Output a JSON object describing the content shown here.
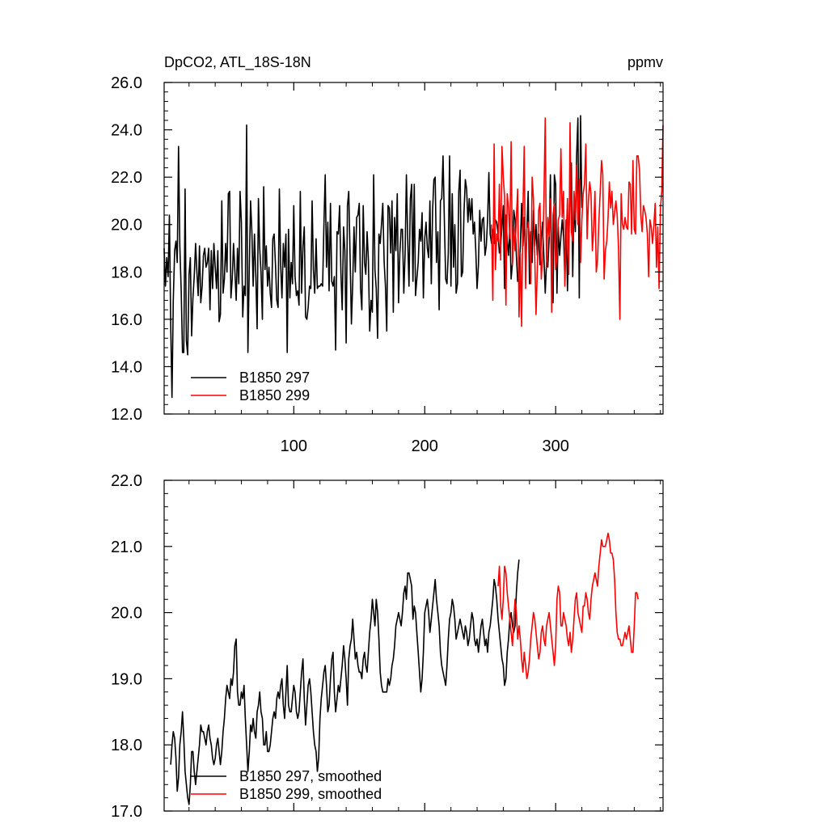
{
  "figure": {
    "title_left": "DpCO2, ATL_18S-18N",
    "title_right": "ppmv"
  },
  "chart_data": [
    {
      "type": "line",
      "panel": "top",
      "xlim": [
        1,
        382
      ],
      "ylim": [
        12,
        26
      ],
      "xticks": [
        100,
        200,
        300
      ],
      "xtick_labels": [
        "100",
        "200",
        "300"
      ],
      "yticks": [
        12,
        14,
        16,
        18,
        20,
        22,
        24,
        26
      ],
      "ytick_labels": [
        "12.0",
        "14.0",
        "16.0",
        "18.0",
        "20.0",
        "22.0",
        "24.0",
        "26.0"
      ],
      "legend_position": "bottom-left",
      "series": [
        {
          "name": "B1850 297",
          "color": "#000000",
          "x_start": 1,
          "values": [
            19.0,
            17.4,
            18.6,
            17.8,
            20.4,
            15.8,
            12.7,
            16.8,
            18.9,
            19.3,
            18.4,
            23.3,
            19.1,
            17.2,
            14.6,
            14.6,
            21.5,
            15.1,
            14.5,
            17.9,
            18.6,
            15.3,
            16.9,
            17.8,
            19.2,
            18.0,
            17.0,
            19.1,
            16.7,
            17.4,
            18.7,
            19.0,
            18.2,
            18.4,
            19.0,
            16.4,
            18.9,
            17.3,
            19.2,
            18.2,
            17.3,
            18.9,
            15.9,
            16.2,
            21.0,
            17.1,
            17.7,
            19.2,
            18.0,
            21.3,
            21.4,
            16.9,
            17.7,
            19.2,
            18.1,
            16.8,
            19.0,
            17.5,
            21.4,
            20.1,
            16.1,
            17.4,
            17.0,
            24.2,
            14.6,
            18.2,
            21.0,
            19.7,
            17.4,
            19.6,
            17.8,
            15.6,
            21.1,
            19.0,
            18.0,
            16.0,
            21.6,
            18.1,
            19.1,
            17.4,
            18.2,
            17.1,
            16.5,
            19.4,
            19.6,
            18.3,
            16.8,
            16.5,
            21.5,
            18.3,
            16.9,
            19.2,
            18.2,
            19.6,
            14.6,
            19.8,
            16.9,
            18.4,
            17.5,
            20.8,
            17.8,
            17.0,
            17.2,
            16.6,
            21.4,
            17.1,
            19.1,
            19.9,
            16.1,
            16.0,
            16.5,
            17.4,
            17.3,
            21.0,
            18.1,
            17.1,
            19.4,
            17.3,
            17.4,
            17.4,
            17.5,
            17.4,
            20.0,
            22.1,
            18.2,
            20.1,
            17.2,
            20.9,
            17.6,
            17.4,
            17.8,
            14.7,
            19.7,
            19.6,
            20.8,
            18.0,
            16.4,
            19.9,
            18.9,
            15.0,
            20.8,
            21.4,
            18.6,
            15.8,
            17.5,
            19.9,
            18.0,
            20.3,
            20.4,
            20.9,
            17.3,
            16.4,
            20.8,
            18.4,
            17.9,
            19.7,
            18.5,
            15.5,
            16.8,
            16.3,
            22.1,
            18.1,
            17.3,
            15.2,
            19.6,
            19.2,
            20.0,
            20.9,
            18.4,
            17.4,
            15.5,
            20.8,
            20.7,
            18.8,
            21.0,
            16.3,
            20.3,
            18.9,
            21.3,
            16.7,
            18.8,
            19.8,
            19.8,
            17.1,
            18.8,
            22.1,
            19.4,
            17.4,
            21.1,
            21.7,
            17.6,
            21.7,
            17.0,
            17.7,
            18.4,
            19.8,
            19.3,
            20.5,
            16.9,
            19.4,
            20.1,
            19.0,
            18.6,
            21.0,
            17.5,
            20.6,
            21.9,
            22.0,
            18.4,
            19.7,
            16.4,
            21.0,
            21.1,
            22.9,
            20.1,
            17.7,
            17.5,
            18.8,
            22.9,
            17.4,
            21.3,
            18.2,
            20.0,
            17.1,
            17.5,
            21.4,
            22.3,
            17.8,
            18.0,
            20.5,
            21.9,
            21.5,
            20.1,
            21.1,
            20.2,
            21.1,
            19.6,
            20.1,
            18.9,
            17.3,
            18.3,
            20.6,
            19.3,
            20.2,
            20.3,
            18.7,
            19.1,
            20.2,
            22.2,
            19.6,
            19.2,
            19.8,
            19.2,
            20.2,
            20.1,
            19.6,
            18.8,
            19.1,
            19.9,
            20.8,
            17.3,
            20.4,
            19.3,
            18.7,
            19.9,
            17.7,
            18.4,
            20.6,
            20.2,
            18.7,
            17.6,
            17.9,
            19.1,
            20.9,
            19.1,
            20.3,
            18.3,
            19.7,
            21.4,
            17.5,
            19.7,
            18.4,
            20.6,
            19.1,
            20.0,
            18.7,
            19.6,
            18.3,
            19.3,
            20.1,
            18.7,
            17.1,
            18.4,
            18.2,
            19.4,
            22.1,
            18.2,
            16.7,
            22.1,
            21.7,
            17.1,
            19.9,
            18.7,
            19.5,
            20.2,
            19.5,
            17.8,
            20.2,
            17.2,
            19.3,
            21.5,
            22.6,
            17.8,
            21.0,
            19.7,
            22.9,
            24.5,
            16.9,
            24.6,
            20.7
          ]
        },
        {
          "name": "B1850 299",
          "color": "#ff0000",
          "x_start": 251,
          "values": [
            20.0,
            16.8,
            23.4,
            18.1,
            19.6,
            19.3,
            21.7,
            18.5,
            23.3,
            22.0,
            21.2,
            16.6,
            21.3,
            20.7,
            19.4,
            23.5,
            18.3,
            19.9,
            18.9,
            20.3,
            21.5,
            16.1,
            18.8,
            15.7,
            20.5,
            23.3,
            17.3,
            19.8,
            20.1,
            19.4,
            17.5,
            22.0,
            21.1,
            18.7,
            16.2,
            18.1,
            20.6,
            20.9,
            17.7,
            18.6,
            20.9,
            24.5,
            18.2,
            20.3,
            19.5,
            21.1,
            16.3,
            20.4,
            20.9,
            18.1,
            18.6,
            20.2,
            20.4,
            23.2,
            20.3,
            21.4,
            17.4,
            19.4,
            21.1,
            17.9,
            24.3,
            19.7,
            19.3,
            21.4,
            20.2,
            22.5,
            20.0,
            21.9,
            18.4,
            20.2,
            21.3,
            21.7,
            23.4,
            19.4,
            21.0,
            21.8,
            21.3,
            18.9,
            19.8,
            21.4,
            18.0,
            18.5,
            20.1,
            21.4,
            22.7,
            22.1,
            17.7,
            18.9,
            19.3,
            20.3,
            21.8,
            20.7,
            21.4,
            20.0,
            20.5,
            21.0,
            20.4,
            19.0,
            16.0,
            21.3,
            20.0,
            19.8,
            20.3,
            19.9,
            19.8,
            21.8,
            21.7,
            19.6,
            22.7,
            19.8,
            19.6,
            22.9,
            22.9,
            22.3,
            20.4,
            19.7,
            20.8,
            20.6,
            20.3,
            19.6,
            17.8,
            20.2,
            19.9,
            19.2,
            20.0,
            20.9,
            18.2,
            19.9,
            17.3,
            20.7,
            21.4,
            24.2
          ]
        }
      ]
    },
    {
      "type": "line",
      "panel": "bottom",
      "xlim": [
        1,
        382
      ],
      "ylim": [
        17,
        22
      ],
      "xticks": [
        100,
        200,
        300
      ],
      "xtick_labels": [
        "",
        "",
        ""
      ],
      "yticks": [
        17,
        18,
        19,
        20,
        21,
        22
      ],
      "ytick_labels": [
        "17.0",
        "18.0",
        "19.0",
        "20.0",
        "21.0",
        "22.0"
      ],
      "legend_position": "bottom-left",
      "series": [
        {
          "name": "B1850 297, smoothed",
          "color": "#000000",
          "x_start": 6,
          "values": [
            17.7,
            18.0,
            18.2,
            18.1,
            17.8,
            17.3,
            17.5,
            18.0,
            18.2,
            18.5,
            18.1,
            17.6,
            17.4,
            17.2,
            17.1,
            17.4,
            17.9,
            17.9,
            17.6,
            17.4,
            17.6,
            17.8,
            18.0,
            18.3,
            18.2,
            18.2,
            18.1,
            18.0,
            18.2,
            18.3,
            18.1,
            18.0,
            17.8,
            17.7,
            17.8,
            18.0,
            18.1,
            17.9,
            17.7,
            17.9,
            18.2,
            18.4,
            18.7,
            18.9,
            18.8,
            18.7,
            19.0,
            18.9,
            19.1,
            19.5,
            19.6,
            18.8,
            18.6,
            18.6,
            18.8,
            18.7,
            18.9,
            18.4,
            18.0,
            17.6,
            17.9,
            18.3,
            18.2,
            18.4,
            18.2,
            18.1,
            18.5,
            18.6,
            18.8,
            18.5,
            18.4,
            18.0,
            18.0,
            18.2,
            17.9,
            17.9,
            18.0,
            18.2,
            18.4,
            18.5,
            18.4,
            18.7,
            18.8,
            18.7,
            18.9,
            19.0,
            18.6,
            18.4,
            18.8,
            19.2,
            18.6,
            18.5,
            18.5,
            18.7,
            18.9,
            18.8,
            18.5,
            18.4,
            18.5,
            18.8,
            19.1,
            19.3,
            18.7,
            18.3,
            18.6,
            18.9,
            19.0,
            18.8,
            18.5,
            18.2,
            18.0,
            17.9,
            17.6,
            17.8,
            18.4,
            18.7,
            18.9,
            19.1,
            19.2,
            18.9,
            18.5,
            18.6,
            19.0,
            19.3,
            19.4,
            18.8,
            18.5,
            18.7,
            18.9,
            18.8,
            19.0,
            19.2,
            19.5,
            19.3,
            19.0,
            18.6,
            19.3,
            19.5,
            19.6,
            19.9,
            19.6,
            19.3,
            19.4,
            19.2,
            19.1,
            19.1,
            19.0,
            19.3,
            19.4,
            19.2,
            19.1,
            19.4,
            19.7,
            19.9,
            20.2,
            20.0,
            19.8,
            20.2,
            20.0,
            19.6,
            19.1,
            18.9,
            18.8,
            18.8,
            18.8,
            18.8,
            19.0,
            18.9,
            19.0,
            19.2,
            19.3,
            19.5,
            19.8,
            19.9,
            20.0,
            19.9,
            19.8,
            20.0,
            20.3,
            20.4,
            20.2,
            20.6,
            20.6,
            20.5,
            20.4,
            19.9,
            20.1,
            20.0,
            19.7,
            19.4,
            19.1,
            18.8,
            19.0,
            19.4,
            20.0,
            20.1,
            20.2,
            20.0,
            19.7,
            19.9,
            20.1,
            20.3,
            20.5,
            20.2,
            20.0,
            19.8,
            19.4,
            19.2,
            19.1,
            19.0,
            18.9,
            19.2,
            19.6,
            19.9,
            20.0,
            20.2,
            20.1,
            19.9,
            19.6,
            19.7,
            19.8,
            19.9,
            19.8,
            19.7,
            19.6,
            19.8,
            19.7,
            19.5,
            19.6,
            19.8,
            20.0,
            19.9,
            19.6,
            19.5,
            19.6,
            19.4,
            19.6,
            19.8,
            19.9,
            19.7,
            19.5,
            19.6,
            19.4,
            19.7,
            19.8,
            20.0,
            20.2,
            20.5,
            20.4,
            20.2,
            19.9,
            19.7,
            19.5,
            19.3,
            19.2,
            18.9,
            19.0,
            19.4,
            19.6,
            19.9,
            20.0,
            19.8,
            19.7,
            19.8,
            20.3,
            20.6,
            20.8
          ]
        },
        {
          "name": "B1850 299, smoothed",
          "color": "#ff0000",
          "x_start": 256,
          "values": [
            20.4,
            20.7,
            20.1,
            19.9,
            20.2,
            20.7,
            20.6,
            20.3,
            20.1,
            19.9,
            19.7,
            19.5,
            19.9,
            20.2,
            20.0,
            19.6,
            19.8,
            19.6,
            19.3,
            19.1,
            19.4,
            19.2,
            19.0,
            19.1,
            19.3,
            19.6,
            19.8,
            20.0,
            19.9,
            19.7,
            19.5,
            19.3,
            19.4,
            19.7,
            19.8,
            19.6,
            19.5,
            19.8,
            19.9,
            20.0,
            19.8,
            19.6,
            19.4,
            19.2,
            19.5,
            20.2,
            20.4,
            20.3,
            19.8,
            19.8,
            20.0,
            19.9,
            19.8,
            19.6,
            19.5,
            19.7,
            19.4,
            19.6,
            19.9,
            20.2,
            20.3,
            20.0,
            19.9,
            19.8,
            19.7,
            20.1,
            20.1,
            20.3,
            20.2,
            20.0,
            19.9,
            20.2,
            20.4,
            20.5,
            20.6,
            20.5,
            20.4,
            20.7,
            20.9,
            21.1,
            21.0,
            21.0,
            21.0,
            21.1,
            21.2,
            21.1,
            20.9,
            20.9,
            20.8,
            20.5,
            20.0,
            19.7,
            19.6,
            19.6,
            19.5,
            19.5,
            19.6,
            19.7,
            19.6,
            19.7,
            19.8,
            19.6,
            19.4,
            19.4,
            19.8,
            20.3,
            20.3,
            20.2
          ]
        }
      ]
    }
  ]
}
